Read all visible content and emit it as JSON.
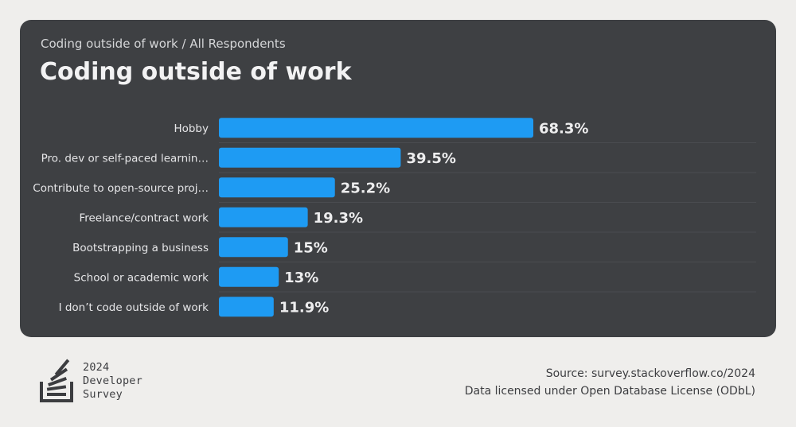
{
  "card": {
    "subtitle": "Coding outside of work / All Respondents",
    "title": "Coding outside of work"
  },
  "chart_data": {
    "type": "bar",
    "orientation": "horizontal",
    "categories": [
      "Hobby",
      "Pro. dev or self-paced learnin…",
      "Contribute to open-source proj…",
      "Freelance/contract work",
      "Bootstrapping a business",
      "School or academic work",
      "I don’t code outside of work"
    ],
    "values": [
      68.3,
      39.5,
      25.2,
      19.3,
      15,
      13,
      11.9
    ],
    "value_labels": [
      "68.3%",
      "39.5%",
      "25.2%",
      "19.3%",
      "15%",
      "13%",
      "11.9%"
    ],
    "title": "Coding outside of work",
    "xlim": [
      0,
      68.3
    ],
    "bar_color": "#1e9bf3",
    "grid": false
  },
  "footer": {
    "logo": {
      "year": "2024",
      "line1": "Developer",
      "line2": "Survey",
      "icon": "stack-overflow-logo-icon"
    },
    "source": "Source: survey.stackoverflow.co/2024",
    "license": "Data licensed under Open Database License (ODbL)"
  },
  "colors": {
    "background": "#efeeec",
    "card": "#3e4043",
    "bar": "#1e9bf3"
  }
}
